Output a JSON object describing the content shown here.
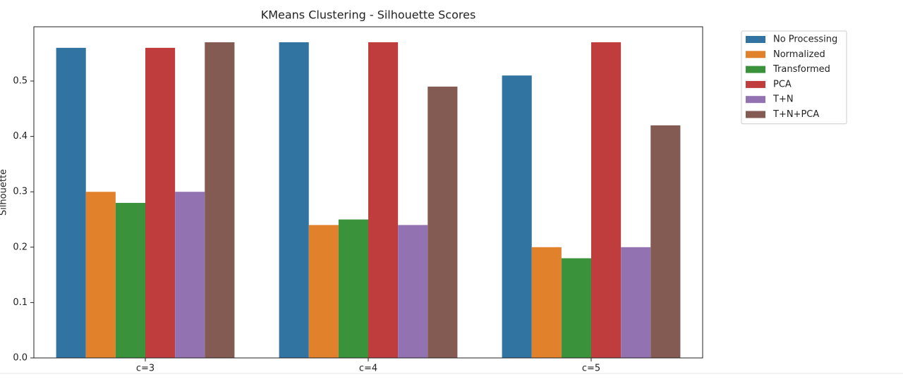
{
  "chart_data": {
    "type": "bar",
    "title": "KMeans Clustering - Silhouette Scores",
    "y_label": "Silhouette",
    "categories": [
      "c=3",
      "c=4",
      "c=5"
    ],
    "series": [
      {
        "name": "No Processing",
        "color": "#3274a1",
        "values": [
          0.56,
          0.57,
          0.51
        ]
      },
      {
        "name": "Normalized",
        "color": "#e1812c",
        "values": [
          0.3,
          0.24,
          0.2
        ]
      },
      {
        "name": "Transformed",
        "color": "#3a923a",
        "values": [
          0.28,
          0.25,
          0.18
        ]
      },
      {
        "name": "PCA",
        "color": "#c03d3e",
        "values": [
          0.56,
          0.57,
          0.57
        ]
      },
      {
        "name": "T+N",
        "color": "#9372b2",
        "values": [
          0.3,
          0.24,
          0.2
        ]
      },
      {
        "name": "T+N+PCA",
        "color": "#845b53",
        "values": [
          0.57,
          0.49,
          0.42
        ]
      }
    ],
    "ylim": [
      0,
      0.598
    ],
    "yticks": [
      {
        "value": 0,
        "label": "0.0"
      },
      0.1,
      0.2,
      0.3,
      0.4,
      0.5
    ],
    "legend": "outside-right"
  }
}
